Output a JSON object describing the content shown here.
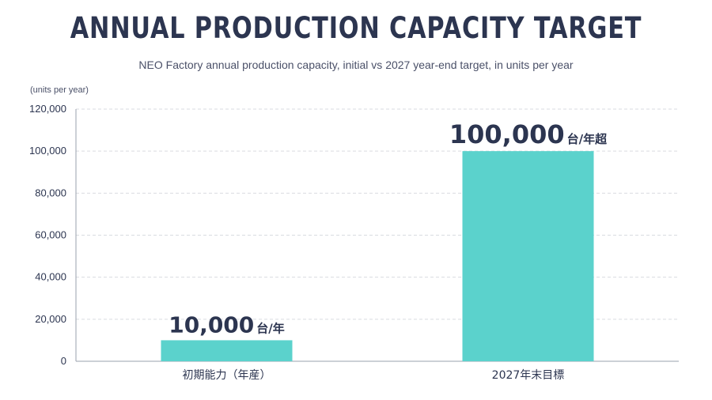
{
  "chart_data": {
    "type": "bar",
    "title": "ANNUAL PRODUCTION CAPACITY TARGET",
    "subtitle": "NEO Factory annual production capacity, initial vs 2027 year-end target, in units per year",
    "y_unit_label": "(units per year)",
    "categories": [
      "初期能力（年産）",
      "2027年末目標"
    ],
    "values": [
      10000,
      100000
    ],
    "data_labels": [
      {
        "number": "10,000",
        "suffix": "台/年"
      },
      {
        "number": "100,000",
        "suffix": "台/年超"
      }
    ],
    "ylim": [
      0,
      120000
    ],
    "yticks": [
      0,
      20000,
      40000,
      60000,
      80000,
      100000,
      120000
    ],
    "ytick_labels": [
      "0",
      "20,000",
      "40,000",
      "60,000",
      "80,000",
      "100,000",
      "120,000"
    ],
    "grid": true,
    "bar_color": "#5bd2cc",
    "text_color": "#2c3550"
  }
}
